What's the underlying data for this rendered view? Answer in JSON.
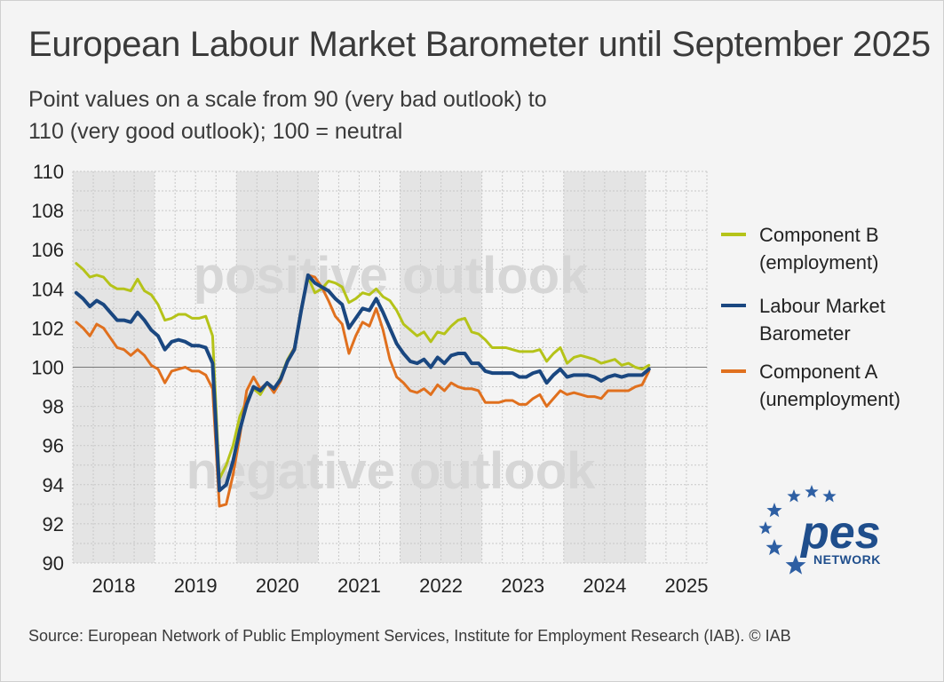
{
  "title": "European Labour Market Barometer until September 2025",
  "subtitle_line1": "Point values on a scale from 90 (very bad outlook) to",
  "subtitle_line2": "110 (very good outlook); 100 = neutral",
  "source": "Source: European Network of Public Employment Services, Institute for Employment Research (IAB).  © IAB",
  "logo": {
    "word": "pes",
    "sub": "NETWORK",
    "icon": "eu-stars-icon",
    "color": "#1f4e8c",
    "star_color": "#2e5fa3"
  },
  "chart_data": {
    "type": "line",
    "title": "",
    "xlabel": "",
    "ylabel": "",
    "ylim": [
      90,
      110
    ],
    "yticks": [
      "90",
      "92",
      "94",
      "96",
      "98",
      "100",
      "102",
      "104",
      "106",
      "108",
      "110"
    ],
    "x_start": "2018-01",
    "x_end": "2025-09",
    "year_labels": [
      "2018",
      "2019",
      "2020",
      "2021",
      "2022",
      "2023",
      "2024",
      "2025"
    ],
    "background_labels": {
      "top": "positive outlook",
      "bottom": "negative outlook"
    },
    "reference_line": 100,
    "grid": true,
    "legend_position": "right",
    "series": [
      {
        "name": "Component B (employment)",
        "legend_line1": "Component B",
        "legend_line2": "(employment)",
        "color": "#b5c319",
        "values": [
          105.3,
          105.0,
          104.6,
          104.7,
          104.6,
          104.2,
          104.0,
          104.0,
          103.9,
          104.5,
          103.9,
          103.7,
          103.2,
          102.4,
          102.5,
          102.7,
          102.7,
          102.5,
          102.5,
          102.6,
          101.6,
          94.3,
          95.0,
          96.0,
          97.5,
          98.3,
          98.9,
          98.6,
          99.2,
          98.8,
          99.5,
          100.4,
          101.0,
          103.0,
          104.6,
          103.8,
          104.0,
          104.4,
          104.3,
          104.1,
          103.3,
          103.5,
          103.8,
          103.7,
          104.0,
          103.6,
          103.4,
          102.9,
          102.2,
          101.9,
          101.6,
          101.8,
          101.3,
          101.8,
          101.7,
          102.1,
          102.4,
          102.5,
          101.8,
          101.7,
          101.4,
          101.0,
          101.0,
          101.0,
          100.9,
          100.8,
          100.8,
          100.8,
          100.9,
          100.3,
          100.7,
          101.0,
          100.2,
          100.5,
          100.6,
          100.5,
          100.4,
          100.2,
          100.3,
          100.4,
          100.1,
          100.2,
          100.0,
          99.9,
          100.1
        ]
      },
      {
        "name": "Labour Market Barometer",
        "legend_line1": "Labour Market",
        "legend_line2": "Barometer",
        "color": "#1a4780",
        "values": [
          103.8,
          103.5,
          103.1,
          103.4,
          103.2,
          102.8,
          102.4,
          102.4,
          102.3,
          102.8,
          102.4,
          101.9,
          101.6,
          100.9,
          101.3,
          101.4,
          101.3,
          101.1,
          101.1,
          101.0,
          100.2,
          93.7,
          94.0,
          95.2,
          96.8,
          98.1,
          99.0,
          98.8,
          99.2,
          98.9,
          99.4,
          100.3,
          100.9,
          102.9,
          104.7,
          104.3,
          104.1,
          103.9,
          103.5,
          103.2,
          102.0,
          102.5,
          103.0,
          102.9,
          103.5,
          102.8,
          102.0,
          101.2,
          100.7,
          100.3,
          100.2,
          100.4,
          100.0,
          100.5,
          100.2,
          100.6,
          100.7,
          100.7,
          100.2,
          100.2,
          99.8,
          99.7,
          99.7,
          99.7,
          99.7,
          99.5,
          99.5,
          99.7,
          99.8,
          99.2,
          99.6,
          99.9,
          99.5,
          99.6,
          99.6,
          99.6,
          99.5,
          99.3,
          99.5,
          99.6,
          99.5,
          99.6,
          99.6,
          99.6,
          99.9
        ]
      },
      {
        "name": "Component A (unemployment)",
        "legend_line1": "Component A",
        "legend_line2": "(unemployment)",
        "color": "#e0701e",
        "values": [
          102.3,
          102.0,
          101.6,
          102.2,
          102.0,
          101.5,
          101.0,
          100.9,
          100.6,
          100.9,
          100.6,
          100.1,
          99.9,
          99.2,
          99.8,
          99.9,
          100.0,
          99.8,
          99.8,
          99.6,
          98.9,
          92.9,
          93.0,
          94.5,
          96.5,
          98.8,
          99.5,
          98.9,
          99.2,
          98.7,
          99.3,
          100.3,
          101.0,
          103.0,
          104.7,
          104.6,
          104.1,
          103.4,
          102.6,
          102.2,
          100.7,
          101.6,
          102.3,
          102.1,
          103.0,
          101.9,
          100.4,
          99.5,
          99.2,
          98.8,
          98.7,
          98.9,
          98.6,
          99.1,
          98.8,
          99.2,
          99.0,
          98.9,
          98.9,
          98.8,
          98.2,
          98.2,
          98.2,
          98.3,
          98.3,
          98.1,
          98.1,
          98.4,
          98.6,
          98.0,
          98.4,
          98.8,
          98.6,
          98.7,
          98.6,
          98.5,
          98.5,
          98.4,
          98.8,
          98.8,
          98.8,
          98.8,
          99.0,
          99.1,
          99.8
        ]
      }
    ]
  }
}
